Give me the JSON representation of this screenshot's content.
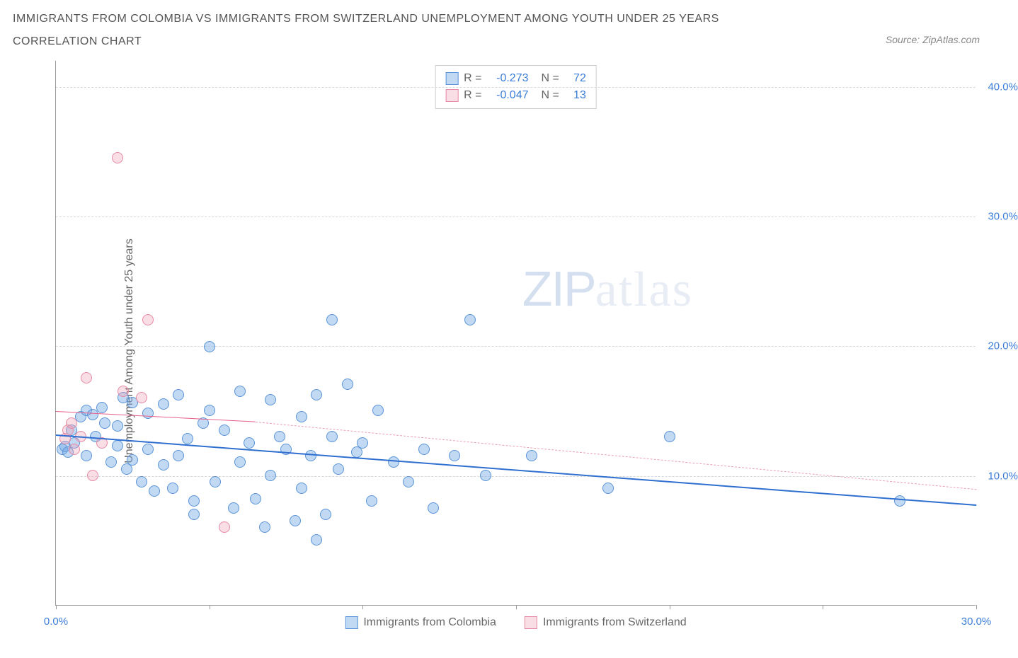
{
  "title_line1": "IMMIGRANTS FROM COLOMBIA VS IMMIGRANTS FROM SWITZERLAND UNEMPLOYMENT AMONG YOUTH UNDER 25 YEARS",
  "title_line2": "CORRELATION CHART",
  "source_label": "Source: ZipAtlas.com",
  "y_axis_label": "Unemployment Among Youth under 25 years",
  "watermark_zip": "ZIP",
  "watermark_atlas": "atlas",
  "chart": {
    "type": "scatter",
    "xlim": [
      0,
      30
    ],
    "ylim": [
      0,
      42
    ],
    "x_ticks": [
      0,
      5,
      10,
      15,
      20,
      25,
      30
    ],
    "x_tick_labels": {
      "0": "0.0%",
      "30": "30.0%"
    },
    "y_gridlines": [
      10,
      20,
      30,
      40
    ],
    "y_tick_labels": {
      "10": "10.0%",
      "20": "20.0%",
      "30": "30.0%",
      "40": "40.0%"
    },
    "background_color": "#ffffff",
    "grid_color": "#d8d8d8",
    "axis_color": "#999999",
    "tick_label_color": "#3b7dd8",
    "point_radius": 8,
    "point_border_width": 1,
    "series": [
      {
        "name": "Immigrants from Colombia",
        "fill": "rgba(120,170,230,0.45)",
        "stroke": "#5a94d6",
        "r_value": "-0.273",
        "n_value": "72",
        "trend": {
          "x1": 0,
          "y1": 13.2,
          "x2": 30,
          "y2": 7.8,
          "color": "#2f6fd0",
          "width": 2.5,
          "dash": "solid"
        },
        "trend_ext": null,
        "points": [
          [
            0.2,
            12.0
          ],
          [
            0.3,
            12.2
          ],
          [
            0.4,
            11.8
          ],
          [
            0.5,
            13.5
          ],
          [
            0.6,
            12.5
          ],
          [
            0.8,
            14.5
          ],
          [
            1.0,
            15.0
          ],
          [
            1.0,
            11.5
          ],
          [
            1.2,
            14.7
          ],
          [
            1.3,
            13.0
          ],
          [
            1.5,
            15.2
          ],
          [
            1.6,
            14.0
          ],
          [
            1.8,
            11.0
          ],
          [
            2.0,
            13.8
          ],
          [
            2.0,
            12.3
          ],
          [
            2.2,
            16.0
          ],
          [
            2.3,
            10.5
          ],
          [
            2.5,
            15.6
          ],
          [
            2.5,
            11.2
          ],
          [
            2.8,
            9.5
          ],
          [
            3.0,
            14.8
          ],
          [
            3.0,
            12.0
          ],
          [
            3.2,
            8.8
          ],
          [
            3.5,
            15.5
          ],
          [
            3.5,
            10.8
          ],
          [
            3.8,
            9.0
          ],
          [
            4.0,
            16.2
          ],
          [
            4.0,
            11.5
          ],
          [
            4.3,
            12.8
          ],
          [
            4.5,
            8.0
          ],
          [
            4.8,
            14.0
          ],
          [
            5.0,
            15.0
          ],
          [
            5.0,
            19.9
          ],
          [
            5.2,
            9.5
          ],
          [
            5.5,
            13.5
          ],
          [
            5.8,
            7.5
          ],
          [
            6.0,
            16.5
          ],
          [
            6.0,
            11.0
          ],
          [
            6.3,
            12.5
          ],
          [
            6.5,
            8.2
          ],
          [
            7.0,
            15.8
          ],
          [
            7.0,
            10.0
          ],
          [
            7.3,
            13.0
          ],
          [
            7.5,
            12.0
          ],
          [
            7.8,
            6.5
          ],
          [
            8.0,
            14.5
          ],
          [
            8.0,
            9.0
          ],
          [
            8.3,
            11.5
          ],
          [
            8.5,
            16.2
          ],
          [
            8.8,
            7.0
          ],
          [
            9.0,
            13.0
          ],
          [
            9.0,
            22.0
          ],
          [
            9.2,
            10.5
          ],
          [
            9.5,
            17.0
          ],
          [
            9.8,
            11.8
          ],
          [
            10.0,
            12.5
          ],
          [
            10.3,
            8.0
          ],
          [
            10.5,
            15.0
          ],
          [
            11.0,
            11.0
          ],
          [
            11.5,
            9.5
          ],
          [
            12.0,
            12.0
          ],
          [
            12.3,
            7.5
          ],
          [
            13.0,
            11.5
          ],
          [
            13.5,
            22.0
          ],
          [
            14.0,
            10.0
          ],
          [
            15.5,
            11.5
          ],
          [
            18.0,
            9.0
          ],
          [
            20.0,
            13.0
          ],
          [
            27.5,
            8.0
          ],
          [
            4.5,
            7.0
          ],
          [
            6.8,
            6.0
          ],
          [
            8.5,
            5.0
          ]
        ]
      },
      {
        "name": "Immigrants from Switzerland",
        "fill": "rgba(240,160,180,0.35)",
        "stroke": "#e68aa5",
        "r_value": "-0.047",
        "n_value": "13",
        "trend": {
          "x1": 0,
          "y1": 15.0,
          "x2": 6.5,
          "y2": 14.2,
          "color": "#e85f87",
          "width": 1.8,
          "dash": "solid"
        },
        "trend_ext": {
          "x1": 6.5,
          "y1": 14.2,
          "x2": 30,
          "y2": 9.0,
          "color": "#e9a0b4",
          "width": 1,
          "dash": "dashed"
        },
        "points": [
          [
            0.3,
            12.8
          ],
          [
            0.4,
            13.5
          ],
          [
            0.5,
            14.0
          ],
          [
            0.8,
            13.0
          ],
          [
            1.0,
            17.5
          ],
          [
            1.5,
            12.5
          ],
          [
            2.0,
            34.5
          ],
          [
            2.2,
            16.5
          ],
          [
            2.8,
            16.0
          ],
          [
            3.0,
            22.0
          ],
          [
            1.2,
            10.0
          ],
          [
            5.5,
            6.0
          ],
          [
            0.6,
            12.0
          ]
        ]
      }
    ],
    "legend_top": {
      "r_label": "R =",
      "n_label": "N ="
    },
    "legend_bottom_labels": [
      "Immigrants from Colombia",
      "Immigrants from Switzerland"
    ]
  }
}
